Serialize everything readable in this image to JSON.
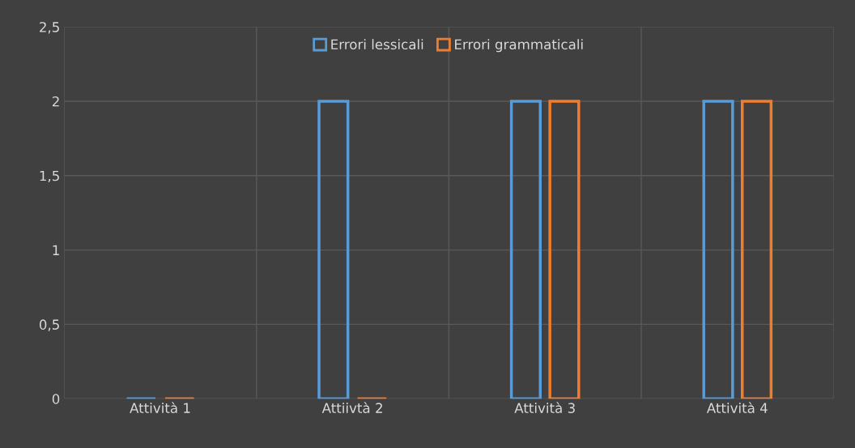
{
  "chart_data": {
    "type": "bar",
    "categories": [
      "Attività 1",
      "Attiivtà 2",
      "Attività 3",
      "Attività 4"
    ],
    "series": [
      {
        "name": "Errori lessicali",
        "color": "#5b9bd5",
        "values": [
          0,
          2,
          2,
          2
        ]
      },
      {
        "name": "Errori grammaticali",
        "color": "#ed7d31",
        "values": [
          0,
          0,
          2,
          2
        ]
      }
    ],
    "ylim": [
      0,
      2.5
    ],
    "yticks": [
      0,
      {
        "value": 0.5,
        "label": "0,5"
      },
      1,
      {
        "value": 1.5,
        "label": "1,5"
      },
      2,
      {
        "value": 2.5,
        "label": "2,5"
      }
    ],
    "grid": true,
    "legend": "top"
  }
}
